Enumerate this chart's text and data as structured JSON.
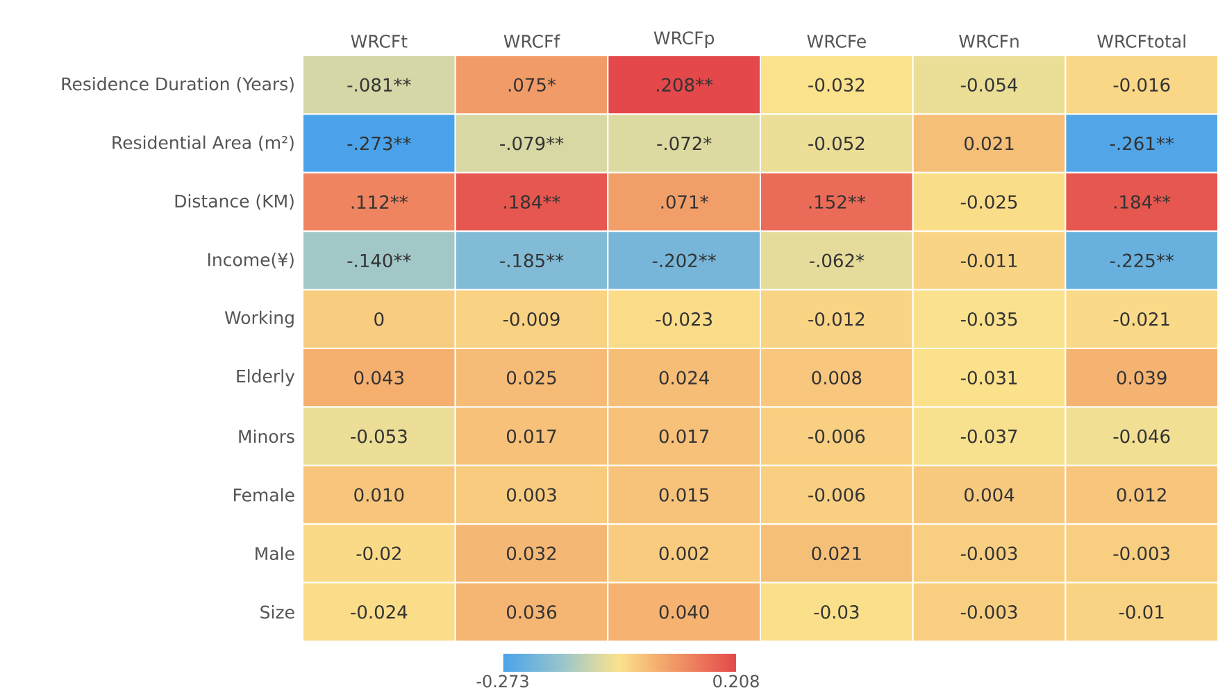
{
  "chart_data": {
    "type": "heatmap",
    "categories": [
      "WRCFt",
      "WRCFf",
      "WRCFp",
      "WRCFe",
      "WRCFn",
      "WRCFtotal"
    ],
    "y_categories": [
      "Residence Duration (Years)",
      "Residential Area (m²)",
      "Distance (KM)",
      "Income(¥)",
      "Working",
      "Elderly",
      "Minors",
      "Female",
      "Male",
      "Size"
    ],
    "cells": [
      [
        -0.081,
        0.075,
        0.208,
        -0.032,
        -0.054,
        -0.016
      ],
      [
        -0.273,
        -0.079,
        -0.072,
        -0.052,
        0.021,
        -0.261
      ],
      [
        0.112,
        0.184,
        0.071,
        0.152,
        -0.025,
        0.184
      ],
      [
        -0.14,
        -0.185,
        -0.202,
        -0.062,
        -0.011,
        -0.225
      ],
      [
        0,
        -0.009,
        -0.023,
        -0.012,
        -0.035,
        -0.021
      ],
      [
        0.043,
        0.025,
        0.024,
        0.008,
        -0.031,
        0.039
      ],
      [
        -0.053,
        0.017,
        0.017,
        -0.006,
        -0.037,
        -0.046
      ],
      [
        0.01,
        0.003,
        0.015,
        -0.006,
        0.004,
        0.012
      ],
      [
        -0.02,
        0.032,
        0.002,
        0.021,
        -0.003,
        -0.003
      ],
      [
        -0.024,
        0.036,
        0.04,
        -0.03,
        -0.003,
        -0.01
      ]
    ],
    "cell_labels": [
      [
        "-.081**",
        ".075*",
        ".208**",
        "-0.032",
        "-0.054",
        "-0.016"
      ],
      [
        "-.273**",
        "-.079**",
        "-.072*",
        "-0.052",
        "0.021",
        "-.261**"
      ],
      [
        ".112**",
        ".184**",
        ".071*",
        ".152**",
        "-0.025",
        ".184**"
      ],
      [
        "-.140**",
        "-.185**",
        "-.202**",
        "-.062*",
        "-0.011",
        "-.225**"
      ],
      [
        "0",
        "-0.009",
        "-0.023",
        "-0.012",
        "-0.035",
        "-0.021"
      ],
      [
        "0.043",
        "0.025",
        "0.024",
        "0.008",
        "-0.031",
        "0.039"
      ],
      [
        "-0.053",
        "0.017",
        "0.017",
        "-0.006",
        "-0.037",
        "-0.046"
      ],
      [
        "0.010",
        "0.003",
        "0.015",
        "-0.006",
        "0.004",
        "0.012"
      ],
      [
        "-0.02",
        "0.032",
        "0.002",
        "0.021",
        "-0.003",
        "-0.003"
      ],
      [
        "-0.024",
        "0.036",
        "0.040",
        "-0.03",
        "-0.003",
        "-0.01"
      ]
    ],
    "clim": [
      -0.273,
      0.208
    ],
    "cticks": [
      {
        "value": -0.273,
        "label": "-0.273"
      },
      {
        "value": 0.208,
        "label": "0.208"
      }
    ]
  }
}
